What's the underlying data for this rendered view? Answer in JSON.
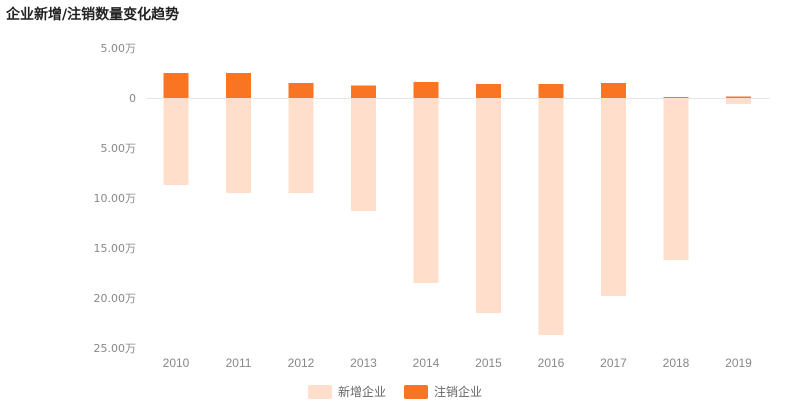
{
  "title": "企业新增/注销数量变化趋势",
  "colors": {
    "new": "#ffdfcb",
    "cancel": "#f97524",
    "axis_text": "#888888",
    "baseline": "#e6e6e6"
  },
  "legend": {
    "new_label": "新增企业",
    "cancel_label": "注销企业"
  },
  "chart_data": {
    "type": "bar",
    "categories": [
      "2010",
      "2011",
      "2012",
      "2013",
      "2014",
      "2015",
      "2016",
      "2017",
      "2018",
      "2019"
    ],
    "series": [
      {
        "name": "新增企业",
        "values": [
          8.7,
          9.5,
          9.5,
          11.3,
          18.5,
          21.5,
          23.7,
          19.8,
          16.2,
          0.6
        ],
        "direction": "down"
      },
      {
        "name": "注销企业",
        "values": [
          2.5,
          2.5,
          1.5,
          1.25,
          1.6,
          1.4,
          1.4,
          1.5,
          0.1,
          0.15
        ],
        "direction": "up"
      }
    ],
    "yticks": [
      {
        "value": 5,
        "label": "5.00万"
      },
      {
        "value": 0,
        "label": "0"
      },
      {
        "value": -5,
        "label": "5.00万"
      },
      {
        "value": -10,
        "label": "10.00万"
      },
      {
        "value": -15,
        "label": "15.00万"
      },
      {
        "value": -20,
        "label": "20.00万"
      },
      {
        "value": -25,
        "label": "25.00万"
      }
    ],
    "ylim": [
      -25,
      5
    ],
    "grid": false,
    "legend_position": "bottom"
  }
}
